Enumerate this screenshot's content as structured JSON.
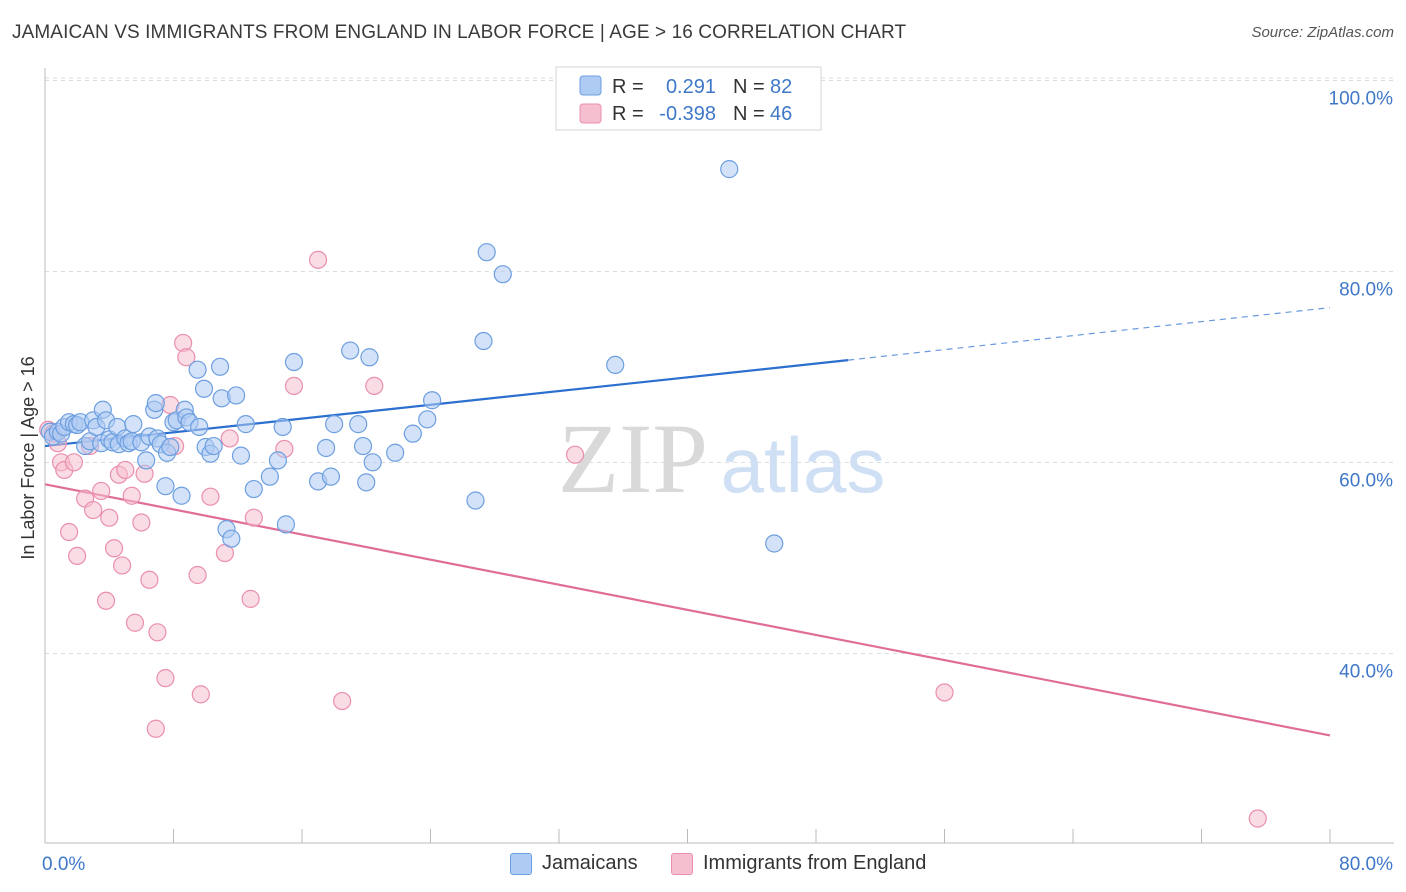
{
  "title": "JAMAICAN VS IMMIGRANTS FROM ENGLAND IN LABOR FORCE | AGE > 16 CORRELATION CHART",
  "source": "Source: ZipAtlas.com",
  "watermark": {
    "zip": "ZIP",
    "atlas": "atlas"
  },
  "colors": {
    "blue_fill": "#aecbf3",
    "blue_stroke": "#6d9fe0",
    "blue_line": "#2b6fcf",
    "pink_fill": "#f6bfd0",
    "pink_stroke": "#ea8fae",
    "pink_line": "#e06d98",
    "axis_text": "#3f78c8",
    "grid": "#dddddd"
  },
  "legend_top": {
    "rows": [
      {
        "r_label": "R =",
        "r_value": "0.291",
        "n_label": "N =",
        "n_value": "82"
      },
      {
        "r_label": "R =",
        "r_value": "-0.398",
        "n_label": "N =",
        "n_value": "46"
      }
    ]
  },
  "legend_bottom": {
    "series1": "Jamaicans",
    "series2": "Immigrants from England"
  },
  "chart_data": {
    "type": "scatter",
    "title": "JAMAICAN VS IMMIGRANTS FROM ENGLAND IN LABOR FORCE | AGE > 16 CORRELATION CHART",
    "xlabel": "",
    "ylabel": "In Labor Force | Age > 16",
    "xlim": [
      0,
      80
    ],
    "ylim": [
      20,
      104
    ],
    "x_ticks": [
      "0.0%",
      "80.0%"
    ],
    "y_ticks": [
      {
        "value": 100,
        "label": "100.0%"
      },
      {
        "value": 80,
        "label": "80.0%"
      },
      {
        "value": 60,
        "label": "60.0%"
      },
      {
        "value": 40,
        "label": "40.0%"
      }
    ],
    "grid": true,
    "legend_position": "top-center",
    "series": [
      {
        "name": "Jamaicans",
        "r": 0.291,
        "n": 82,
        "trend": {
          "x0": 0,
          "y0": 63.5,
          "x1": 50,
          "y1": 72.5,
          "dash_x1": 80,
          "dash_y1": 78
        },
        "points": [
          [
            0.3,
            65
          ],
          [
            0.5,
            64.5
          ],
          [
            0.8,
            65
          ],
          [
            1,
            64.8
          ],
          [
            1.2,
            65.5
          ],
          [
            1.5,
            66
          ],
          [
            1.8,
            65.8
          ],
          [
            2,
            65.7
          ],
          [
            2.2,
            66
          ],
          [
            2.5,
            63.5
          ],
          [
            2.8,
            64
          ],
          [
            3,
            66.2
          ],
          [
            3.2,
            65.5
          ],
          [
            3.5,
            63.8
          ],
          [
            3.6,
            67.3
          ],
          [
            3.8,
            66.2
          ],
          [
            4,
            64.2
          ],
          [
            4.2,
            63.9
          ],
          [
            4.5,
            65.5
          ],
          [
            4.6,
            63.7
          ],
          [
            5,
            64.3
          ],
          [
            5.2,
            63.8
          ],
          [
            5.4,
            64
          ],
          [
            5.5,
            65.8
          ],
          [
            6,
            63.9
          ],
          [
            6.3,
            62
          ],
          [
            6.5,
            64.5
          ],
          [
            6.8,
            67.3
          ],
          [
            6.9,
            68
          ],
          [
            7,
            64.3
          ],
          [
            7.2,
            63.7
          ],
          [
            7.5,
            59.3
          ],
          [
            7.6,
            62.8
          ],
          [
            7.8,
            63.4
          ],
          [
            8,
            66
          ],
          [
            8.2,
            66.2
          ],
          [
            8.5,
            58.3
          ],
          [
            8.7,
            67.3
          ],
          [
            8.8,
            66.5
          ],
          [
            9,
            66
          ],
          [
            9.5,
            71.5
          ],
          [
            9.6,
            65.5
          ],
          [
            9.9,
            69.5
          ],
          [
            10,
            63.4
          ],
          [
            10.3,
            62.7
          ],
          [
            10.5,
            63.5
          ],
          [
            10.9,
            71.8
          ],
          [
            11,
            68.5
          ],
          [
            11.3,
            54.8
          ],
          [
            11.6,
            53.8
          ],
          [
            11.9,
            68.8
          ],
          [
            12.2,
            62.5
          ],
          [
            12.5,
            65.8
          ],
          [
            13,
            59
          ],
          [
            14,
            60.3
          ],
          [
            14.5,
            62
          ],
          [
            14.8,
            65.5
          ],
          [
            15,
            55.3
          ],
          [
            15.5,
            72.3
          ],
          [
            17,
            59.8
          ],
          [
            17.5,
            63.3
          ],
          [
            17.8,
            60.3
          ],
          [
            18,
            65.8
          ],
          [
            19,
            73.5
          ],
          [
            19.5,
            65.8
          ],
          [
            19.8,
            63.5
          ],
          [
            20,
            59.7
          ],
          [
            20.2,
            72.8
          ],
          [
            20.4,
            61.8
          ],
          [
            21.8,
            62.8
          ],
          [
            22.9,
            64.8
          ],
          [
            23.8,
            66.3
          ],
          [
            24.1,
            68.3
          ],
          [
            26.8,
            57.8
          ],
          [
            27.3,
            74.5
          ],
          [
            27.5,
            83.8
          ],
          [
            28.5,
            81.5
          ],
          [
            35.5,
            72
          ],
          [
            42.6,
            92.5
          ],
          [
            45.4,
            53.3
          ]
        ]
      },
      {
        "name": "Immigrants from England",
        "r": -0.398,
        "n": 46,
        "trend": {
          "x0": 0,
          "y0": 59.5,
          "x1": 80,
          "y1": 33.2
        },
        "points": [
          [
            0.2,
            65.2
          ],
          [
            0.5,
            64.8
          ],
          [
            0.8,
            63.8
          ],
          [
            1,
            61.8
          ],
          [
            1.2,
            61
          ],
          [
            1.5,
            54.5
          ],
          [
            1.8,
            61.8
          ],
          [
            2,
            52
          ],
          [
            2.5,
            58
          ],
          [
            2.8,
            63.5
          ],
          [
            3,
            56.8
          ],
          [
            3.5,
            58.8
          ],
          [
            3.8,
            47.3
          ],
          [
            4,
            56
          ],
          [
            4.3,
            52.8
          ],
          [
            4.6,
            60.5
          ],
          [
            4.8,
            51
          ],
          [
            5,
            61
          ],
          [
            5.4,
            58.3
          ],
          [
            5.6,
            45
          ],
          [
            6,
            55.5
          ],
          [
            6.2,
            60.6
          ],
          [
            6.5,
            49.5
          ],
          [
            6.9,
            33.9
          ],
          [
            7,
            44
          ],
          [
            7.5,
            39.2
          ],
          [
            7.8,
            67.8
          ],
          [
            8.1,
            63.5
          ],
          [
            8.6,
            74.3
          ],
          [
            8.8,
            72.8
          ],
          [
            9.5,
            50
          ],
          [
            9.7,
            37.5
          ],
          [
            10.3,
            58.2
          ],
          [
            11.2,
            52.3
          ],
          [
            11.5,
            64.3
          ],
          [
            12.8,
            47.5
          ],
          [
            13,
            56
          ],
          [
            14.9,
            63.2
          ],
          [
            15.5,
            69.8
          ],
          [
            17,
            83
          ],
          [
            18.5,
            36.8
          ],
          [
            20.5,
            69.8
          ],
          [
            33,
            62.6
          ],
          [
            56,
            37.7
          ],
          [
            75.5,
            24.5
          ]
        ]
      }
    ]
  }
}
